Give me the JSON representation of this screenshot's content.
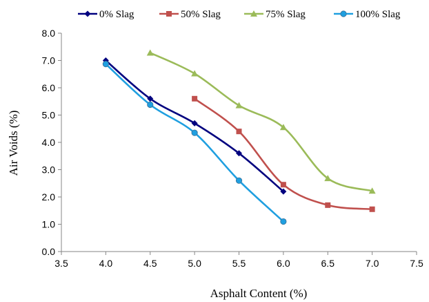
{
  "chart_data": {
    "type": "line",
    "title": "",
    "xlabel": "Asphalt Content (%)",
    "ylabel": "Air Voids (%)",
    "xlim": [
      3.5,
      7.5
    ],
    "ylim": [
      0.0,
      8.0
    ],
    "xticks": [
      "3.5",
      "4.0",
      "4.5",
      "5.0",
      "5.5",
      "6.0",
      "6.5",
      "7.0",
      "7.5"
    ],
    "yticks": [
      "0.0",
      "1.0",
      "2.0",
      "3.0",
      "4.0",
      "5.0",
      "6.0",
      "7.0",
      "8.0"
    ],
    "grid": false,
    "legend_position": "top",
    "series": [
      {
        "name": "0% Slag",
        "color": "#00007f",
        "marker": "diamond",
        "x": [
          4.0,
          4.5,
          5.0,
          5.5,
          6.0
        ],
        "y": [
          7.0,
          5.6,
          4.7,
          3.6,
          2.2
        ]
      },
      {
        "name": "50% Slag",
        "color": "#c0504d",
        "marker": "square",
        "x": [
          5.0,
          5.5,
          6.0,
          6.5,
          7.0
        ],
        "y": [
          5.6,
          4.4,
          2.45,
          1.7,
          1.55
        ]
      },
      {
        "name": "75% Slag",
        "color": "#9bbb59",
        "marker": "triangle",
        "x": [
          4.5,
          5.0,
          5.5,
          6.0,
          6.5,
          7.0
        ],
        "y": [
          7.28,
          6.52,
          5.35,
          4.55,
          2.68,
          2.22
        ]
      },
      {
        "name": "100% Slag",
        "color": "#1f9fe0",
        "marker": "circle",
        "x": [
          4.0,
          4.5,
          5.0,
          5.5,
          6.0
        ],
        "y": [
          6.87,
          5.38,
          4.35,
          2.6,
          1.1
        ]
      }
    ]
  }
}
